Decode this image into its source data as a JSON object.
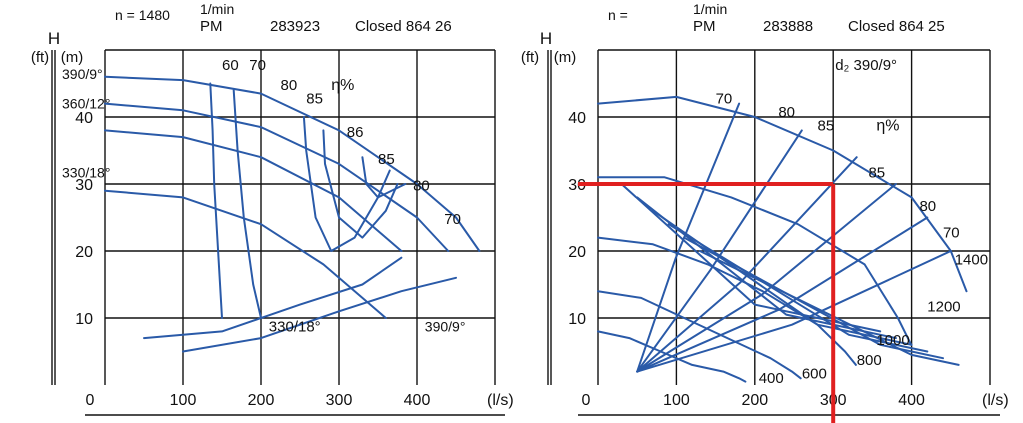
{
  "colors": {
    "curve": "#2a5aa8",
    "grid": "#111111",
    "operating_point": "#e02020"
  },
  "chart_data": [
    {
      "type": "line",
      "header": {
        "speed": "n = 1480",
        "unit_top": "1/min",
        "unit_bottom": "PM",
        "code": "283923",
        "mode": "Closed 864  26"
      },
      "ylabel_letter": "H",
      "ylabel_units": [
        "(ft)",
        "(m)"
      ],
      "xlabel": "(l/s)",
      "grid": true,
      "xlim": [
        0,
        500
      ],
      "ylim": [
        0,
        50
      ],
      "x_ticks": [
        100,
        200,
        300,
        400
      ],
      "y_ticks": [
        10,
        20,
        30,
        40
      ],
      "origin_label": "0",
      "impeller_curves": [
        {
          "name": "390/9°",
          "points": [
            [
              0,
              46
            ],
            [
              100,
              45.5
            ],
            [
              200,
              43.5
            ],
            [
              300,
              38
            ],
            [
              400,
              30
            ],
            [
              450,
              25
            ],
            [
              480,
              20
            ]
          ]
        },
        {
          "name": "360/12°",
          "points": [
            [
              0,
              42
            ],
            [
              100,
              41
            ],
            [
              200,
              38.5
            ],
            [
              300,
              33
            ],
            [
              400,
              25
            ],
            [
              440,
              20
            ]
          ]
        },
        {
          "name": "330/18°",
          "points": [
            [
              0,
              38
            ],
            [
              100,
              37
            ],
            [
              200,
              34
            ],
            [
              300,
              28
            ],
            [
              380,
              20
            ]
          ]
        },
        {
          "name": "330/18°",
          "points": [
            [
              0,
              29
            ],
            [
              100,
              28
            ],
            [
              200,
              24
            ],
            [
              280,
              18
            ],
            [
              360,
              10
            ]
          ]
        }
      ],
      "eff_curves": [
        {
          "label": "60",
          "points": [
            [
              135,
              45
            ],
            [
              138,
              38
            ],
            [
              140,
              30
            ],
            [
              145,
              20
            ],
            [
              150,
              10
            ]
          ]
        },
        {
          "label": "70",
          "points": [
            [
              165,
              44
            ],
            [
              170,
              35
            ],
            [
              178,
              25
            ],
            [
              190,
              15
            ],
            [
              200,
              10
            ]
          ]
        },
        {
          "label": "80",
          "points": [
            [
              255,
              40
            ],
            [
              258,
              35
            ],
            [
              270,
              25
            ],
            [
              290,
              20
            ],
            [
              320,
              22
            ],
            [
              350,
              28
            ],
            [
              385,
              30
            ]
          ]
        },
        {
          "label": "85",
          "points": [
            [
              280,
              38
            ],
            [
              282,
              33
            ],
            [
              300,
              25
            ],
            [
              330,
              22
            ],
            [
              360,
              26
            ],
            [
              375,
              30
            ]
          ]
        },
        {
          "label": "86",
          "points": [
            [
              330,
              34
            ],
            [
              335,
              30
            ],
            [
              350,
              28
            ],
            [
              365,
              32
            ]
          ]
        }
      ],
      "eff_labels": [
        "60",
        "70",
        "80",
        "85",
        "86",
        "85",
        "80",
        "70"
      ],
      "eff_unit_label": "η%",
      "curve_labels": [
        "390/9°",
        "360/12°",
        "330/18°",
        "330/18°",
        "390/9°"
      ]
    },
    {
      "type": "line",
      "header": {
        "speed": "n =",
        "unit_top": "1/min",
        "unit_bottom": "PM",
        "code": "283888",
        "mode": "Closed 864  25"
      },
      "ylabel_letter": "H",
      "ylabel_units": [
        "(ft)",
        "(m)"
      ],
      "xlabel": "(l/s)",
      "grid": true,
      "xlim": [
        0,
        500
      ],
      "ylim": [
        0,
        50
      ],
      "x_ticks": [
        100,
        200,
        300,
        400
      ],
      "y_ticks": [
        10,
        20,
        30,
        40
      ],
      "origin_label": "0",
      "d2_label": "d₂ 390/9°",
      "operating_point": {
        "x": 300,
        "y": 30
      },
      "eff_labels": [
        "70",
        "80",
        "85",
        "85",
        "80",
        "70"
      ],
      "eff_unit_label": "η%",
      "speed_labels": [
        "1400",
        "1200",
        "1000",
        "800",
        "600",
        "400"
      ]
    }
  ]
}
